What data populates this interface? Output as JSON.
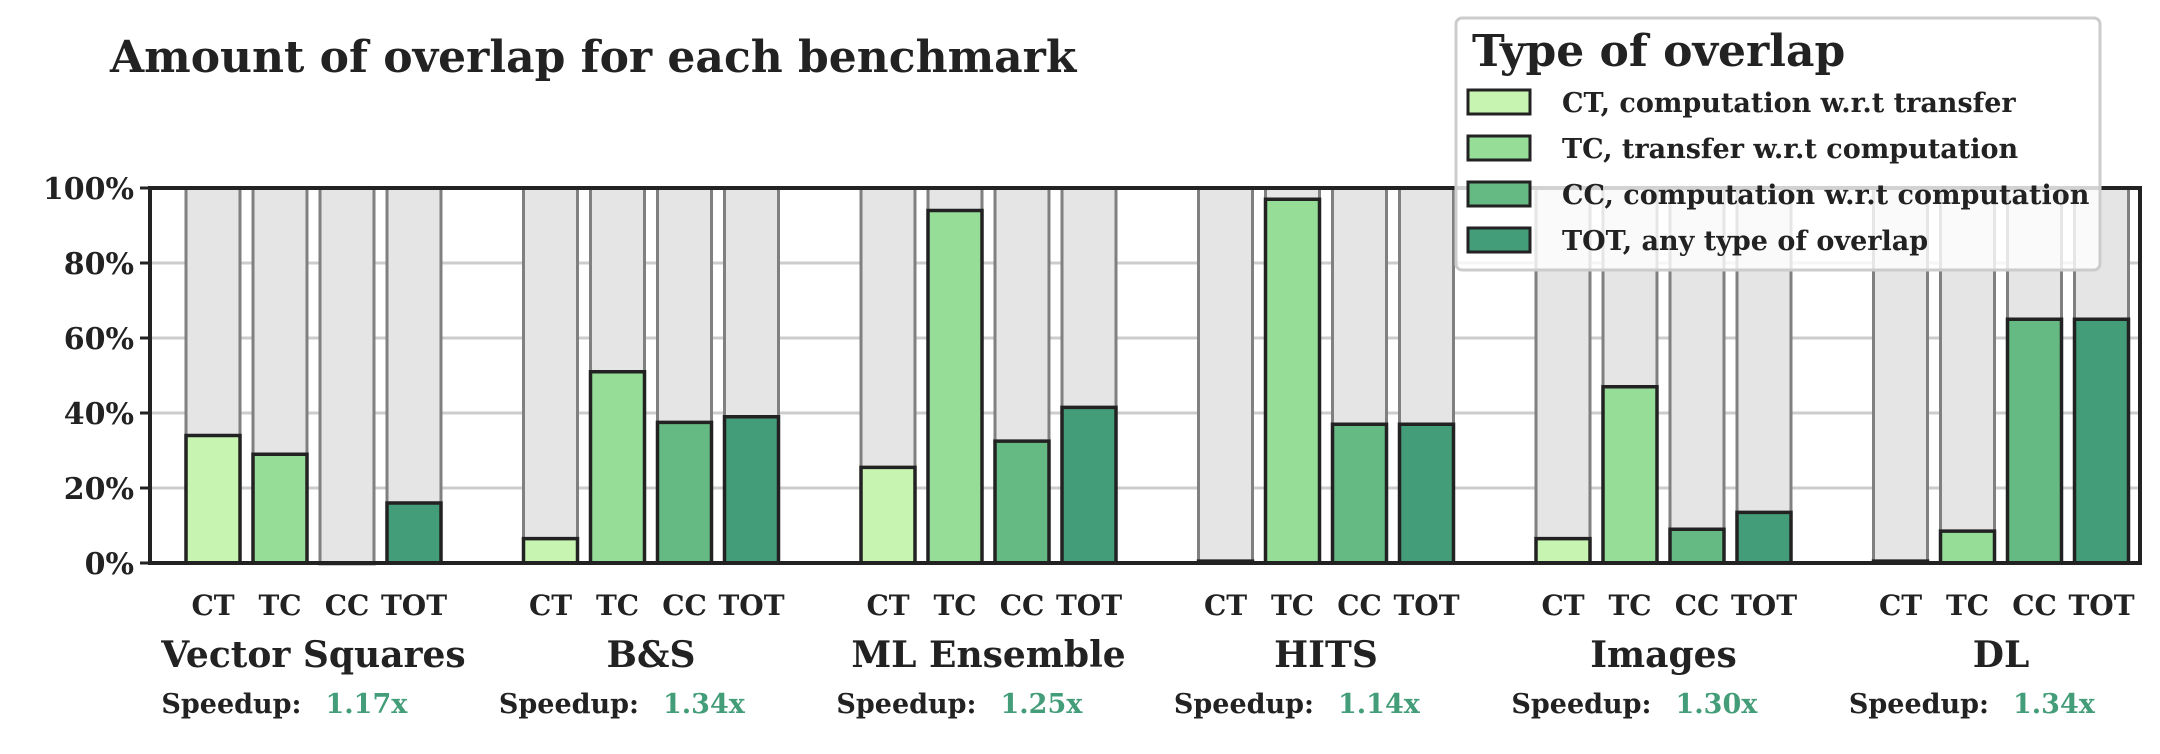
{
  "chart_data": {
    "type": "bar",
    "title": "Amount of overlap for each benchmark",
    "ylim": [
      0,
      100
    ],
    "yticks": [
      0,
      20,
      40,
      60,
      80,
      100
    ],
    "ytick_labels": [
      "0%",
      "20%",
      "40%",
      "60%",
      "80%",
      "100%"
    ],
    "grid": true,
    "legend_position": "top-right",
    "categories": [
      "CT",
      "TC",
      "CC",
      "TOT"
    ],
    "series": [
      {
        "name": "CT, computation w.r.t transfer",
        "color": "#c7f5b1"
      },
      {
        "name": "TC, transfer w.r.t computation",
        "color": "#96de98"
      },
      {
        "name": "CC, computation w.r.t computation",
        "color": "#65b983"
      },
      {
        "name": "TOT, any type of overlap",
        "color": "#449d79"
      }
    ],
    "legend_title": "Type of overlap",
    "speedup_label": "Speedup:",
    "speedup_color": "#449d79",
    "background_bar_color": "#e5e5e5",
    "groups": [
      {
        "name": "Vector Squares",
        "values": [
          34,
          29,
          0,
          16
        ],
        "speedup": "1.17x"
      },
      {
        "name": "B&S",
        "values": [
          6.5,
          51,
          37.5,
          39
        ],
        "speedup": "1.34x"
      },
      {
        "name": "ML Ensemble",
        "values": [
          25.5,
          94,
          32.5,
          41.5
        ],
        "speedup": "1.25x"
      },
      {
        "name": "HITS",
        "values": [
          0.5,
          97,
          37,
          37
        ],
        "speedup": "1.14x"
      },
      {
        "name": "Images",
        "values": [
          6.5,
          47,
          9,
          13.5
        ],
        "speedup": "1.30x"
      },
      {
        "name": "DL",
        "values": [
          0.5,
          8.5,
          65,
          65
        ],
        "speedup": "1.34x"
      }
    ]
  }
}
